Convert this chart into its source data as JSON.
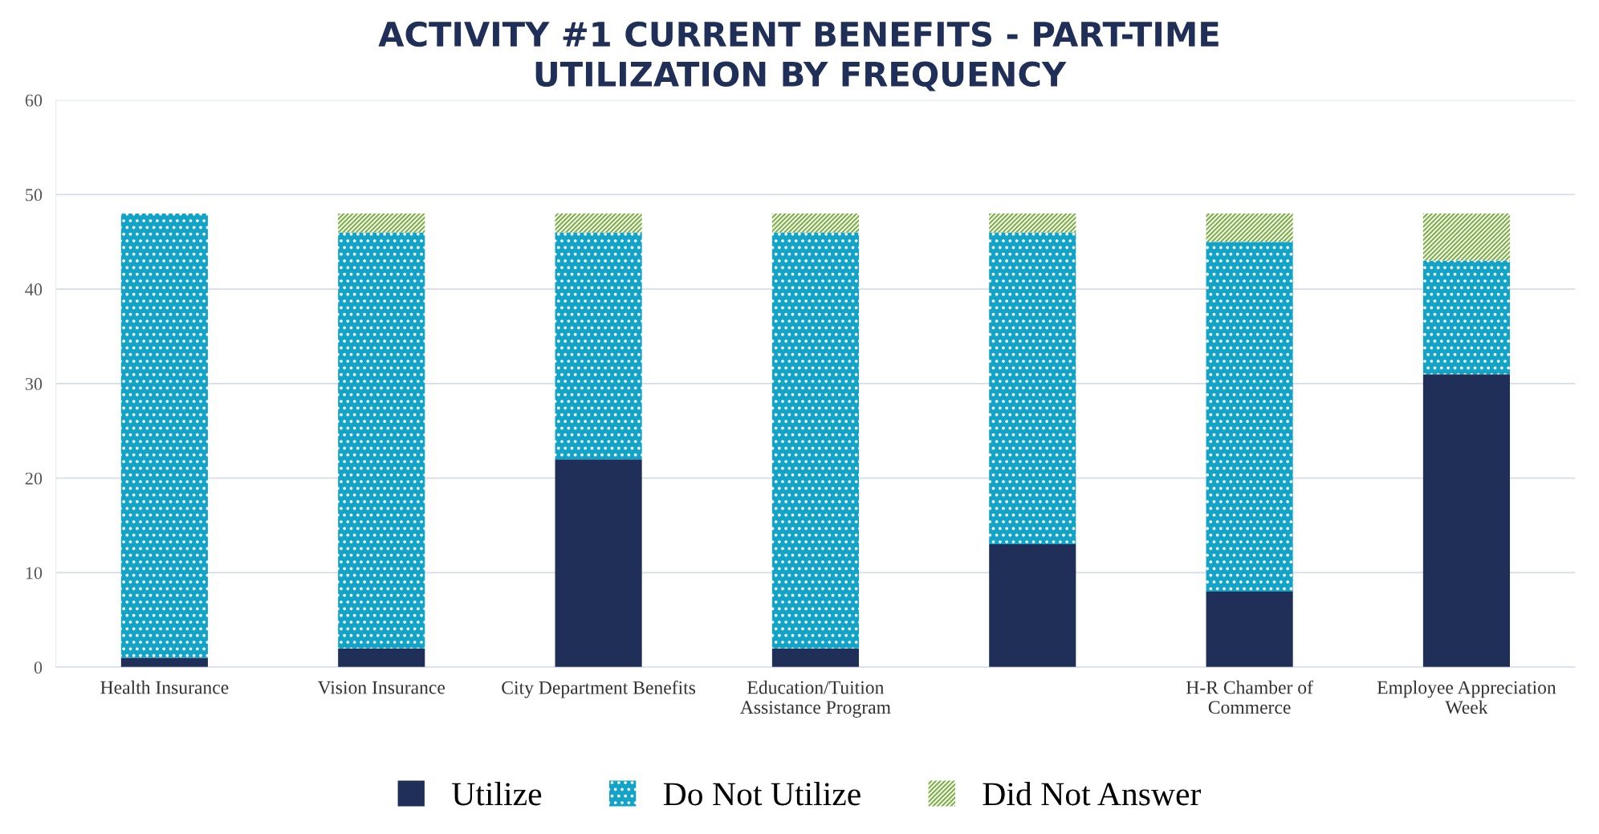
{
  "chart_data": {
    "type": "bar",
    "stacked": true,
    "title": "ACTIVITY #1 CURRENT BENEFITS - PART-TIME\nUTILIZATION BY FREQUENCY",
    "categories": [
      "Health Insurance",
      "Vision Insurance",
      "City Department Benefits",
      "Education/Tuition\nAssistance Program",
      null,
      "H-R Chamber of\nCommerce",
      "Employee Appreciation\nWeek"
    ],
    "series": [
      {
        "name": "Utilize",
        "color": "#1f2f57",
        "values": [
          1,
          2,
          22,
          2,
          13,
          8,
          31
        ]
      },
      {
        "name": "Do Not Utilize",
        "color": "#12a3c8",
        "values": [
          47,
          44,
          24,
          44,
          33,
          37,
          12
        ]
      },
      {
        "name": "Did Not Answer",
        "color": "#7ab03f",
        "values": [
          0,
          2,
          2,
          2,
          2,
          3,
          5
        ]
      }
    ],
    "ylim": [
      0,
      60
    ],
    "yticks": [
      0,
      10,
      20,
      30,
      40,
      50,
      60
    ],
    "grid": "y",
    "legend": "bottom"
  }
}
